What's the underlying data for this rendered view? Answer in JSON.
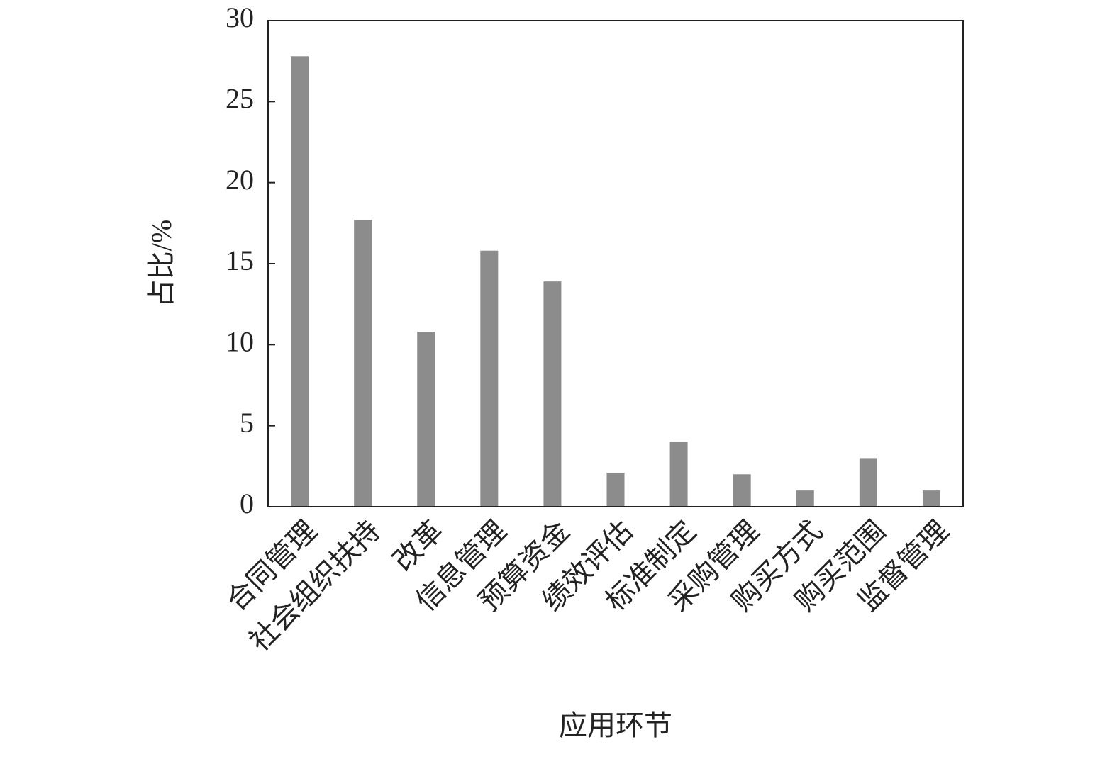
{
  "chart_data": {
    "type": "bar",
    "x_label": "应用环节",
    "y_label": "占比/%",
    "categories": [
      "合同管理",
      "社会组织扶持",
      "改革",
      "信息管理",
      "预算资金",
      "绩效评估",
      "标准制定",
      "采购管理",
      "购买方式",
      "购买范围",
      "监督管理"
    ],
    "values": [
      27.8,
      17.7,
      10.8,
      15.8,
      13.9,
      2.1,
      4.0,
      2.0,
      1.0,
      3.0,
      1.0
    ],
    "color": "#8c8c8c",
    "ylim": [
      0,
      30
    ],
    "yticks": [
      0,
      5,
      10,
      15,
      20,
      25,
      30
    ],
    "grid": false
  }
}
